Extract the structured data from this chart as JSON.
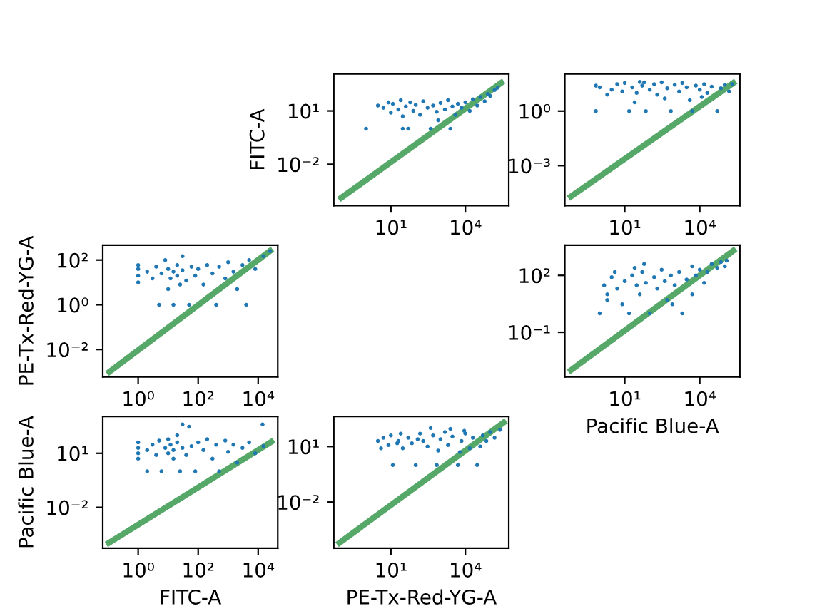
{
  "chart_data": [
    {
      "type": "scatter",
      "ylabel": "FITC-A",
      "xlim": [
        0.05,
        560000
      ],
      "ylim": [
        4.7e-05,
        1200
      ],
      "log": "xy",
      "grid": false,
      "xticks": [
        {
          "value": 10,
          "label": "10¹"
        },
        {
          "value": 10000,
          "label": "10⁴"
        }
      ],
      "yticks": [
        {
          "value": 10,
          "label": "10¹"
        },
        {
          "value": 0.01,
          "label": "10⁻²"
        }
      ],
      "series": [
        {
          "color": "#1f77b4",
          "x": [
            1,
            3,
            5,
            8,
            10,
            12,
            20,
            25,
            30,
            40,
            50,
            60,
            80,
            100,
            150,
            200,
            300,
            400,
            500,
            700,
            1000,
            1500,
            2000,
            3000,
            4000,
            5000,
            7000,
            10000,
            15000,
            20000,
            30000,
            40000,
            60000,
            80000,
            100000,
            150000,
            200000,
            30,
            2500,
            800
          ],
          "values": [
            1,
            20,
            15,
            30,
            8,
            25,
            12,
            40,
            5,
            18,
            1,
            30,
            10,
            22,
            6,
            35,
            15,
            1,
            20,
            9,
            28,
            12,
            40,
            18,
            6,
            25,
            15,
            30,
            10,
            45,
            20,
            60,
            35,
            90,
            70,
            150,
            200,
            1,
            1,
            3
          ]
        },
        {
          "type": "line",
          "color": "#55a868",
          "x": [
            0.1,
            280000
          ],
          "values": [
            0.00013,
            380
          ]
        }
      ]
    },
    {
      "type": "scatter",
      "xlim": [
        0.04,
        400000
      ],
      "ylim": [
        6.3e-06,
        110
      ],
      "log": "xy",
      "grid": false,
      "xticks": [
        {
          "value": 10,
          "label": "10¹"
        },
        {
          "value": 10000,
          "label": "10⁴"
        }
      ],
      "yticks": [
        {
          "value": 1,
          "label": "10⁰"
        },
        {
          "value": 0.001,
          "label": "10⁻³"
        }
      ],
      "series": [
        {
          "color": "#1f77b4",
          "x": [
            0.7,
            0.7,
            1,
            2,
            3,
            5,
            8,
            10,
            15,
            20,
            30,
            40,
            50,
            70,
            100,
            150,
            200,
            300,
            500,
            700,
            1000,
            1500,
            2000,
            3000,
            5000,
            7000,
            10000,
            15000,
            20000,
            30000,
            50000,
            70000,
            100000,
            150000,
            200000,
            25,
            400,
            4000,
            12000,
            60
          ],
          "values": [
            1,
            25,
            20,
            8,
            15,
            30,
            12,
            35,
            1,
            20,
            10,
            40,
            25,
            1,
            15,
            30,
            8,
            38,
            18,
            1,
            28,
            12,
            35,
            20,
            1,
            25,
            15,
            30,
            10,
            22,
            1,
            18,
            28,
            12,
            30,
            3,
            5,
            4,
            6,
            38
          ]
        },
        {
          "type": "line",
          "color": "#55a868",
          "x": [
            0.07,
            220000
          ],
          "values": [
            2e-05,
            35
          ]
        }
      ]
    },
    {
      "type": "scatter",
      "ylabel": "PE-Tx-Red-YG-A",
      "xlim": [
        0.066,
        45000
      ],
      "ylim": [
        0.00059,
        460
      ],
      "log": "xy",
      "grid": false,
      "xticks": [
        {
          "value": 1,
          "label": "10⁰"
        },
        {
          "value": 100,
          "label": "10²"
        },
        {
          "value": 10000,
          "label": "10⁴"
        }
      ],
      "yticks": [
        {
          "value": 100,
          "label": "10²"
        },
        {
          "value": 1,
          "label": "10⁰"
        },
        {
          "value": 0.01,
          "label": "10⁻²"
        }
      ],
      "series": [
        {
          "color": "#1f77b4",
          "x": [
            1,
            1,
            1,
            1,
            2,
            3,
            4,
            5,
            6,
            8,
            10,
            10,
            12,
            15,
            15,
            20,
            20,
            25,
            30,
            30,
            40,
            50,
            60,
            80,
            100,
            150,
            200,
            300,
            400,
            500,
            800,
            1000,
            1500,
            2000,
            3000,
            4000,
            5000,
            8000,
            15000,
            25000
          ],
          "values": [
            10,
            20,
            40,
            60,
            30,
            15,
            50,
            1,
            25,
            100,
            5,
            40,
            15,
            30,
            1,
            60,
            20,
            8,
            150,
            35,
            12,
            1,
            50,
            20,
            40,
            8,
            60,
            25,
            1,
            50,
            15,
            80,
            30,
            5,
            60,
            1,
            100,
            40,
            150,
            250
          ]
        },
        {
          "type": "line",
          "color": "#55a868",
          "x": [
            0.11,
            25000
          ],
          "values": [
            0.001,
            257
          ]
        }
      ]
    },
    {
      "type": "scatter",
      "xlabel": "Pacific Blue-A",
      "xlim": [
        0.04,
        400000
      ],
      "ylim": [
        0.00044,
        3900
      ],
      "log": "xy",
      "grid": false,
      "xticks": [
        {
          "value": 10,
          "label": "10¹"
        },
        {
          "value": 10000,
          "label": "10⁴"
        }
      ],
      "yticks": [
        {
          "value": 100,
          "label": "10²"
        },
        {
          "value": 0.1,
          "label": "10⁻¹"
        }
      ],
      "series": [
        {
          "color": "#1f77b4",
          "x": [
            1,
            1.5,
            2,
            3,
            5,
            8,
            10,
            15,
            20,
            30,
            40,
            50,
            70,
            100,
            150,
            200,
            300,
            400,
            500,
            700,
            1000,
            1500,
            2000,
            3000,
            5000,
            7000,
            10000,
            15000,
            20000,
            30000,
            50000,
            70000,
            100000,
            120000,
            60,
            25,
            800,
            5000,
            4,
            2
          ],
          "values": [
            1,
            30,
            10,
            80,
            20,
            3,
            50,
            1,
            100,
            30,
            10,
            150,
            40,
            1,
            80,
            20,
            200,
            50,
            5,
            100,
            30,
            150,
            1,
            60,
            300,
            100,
            200,
            40,
            150,
            400,
            250,
            500,
            300,
            600,
            400,
            250,
            3,
            10,
            150,
            5
          ]
        },
        {
          "type": "line",
          "color": "#55a868",
          "x": [
            0.07,
            220000
          ],
          "values": [
            0.001,
            2000
          ]
        }
      ]
    },
    {
      "type": "scatter",
      "xlabel": "FITC-A",
      "ylabel": "Pacific Blue-A",
      "xlim": [
        0.066,
        45000
      ],
      "ylim": [
        5.4e-05,
        1100
      ],
      "log": "xy",
      "grid": false,
      "xticks": [
        {
          "value": 1,
          "label": "10⁰"
        },
        {
          "value": 100,
          "label": "10²"
        },
        {
          "value": 10000,
          "label": "10⁴"
        }
      ],
      "yticks": [
        {
          "value": 10,
          "label": "10¹"
        },
        {
          "value": 0.01,
          "label": "10⁻²"
        }
      ],
      "series": [
        {
          "color": "#1f77b4",
          "x": [
            1,
            1,
            1,
            1,
            2,
            2,
            3,
            4,
            5,
            6,
            8,
            10,
            10,
            12,
            15,
            15,
            20,
            20,
            25,
            30,
            30,
            40,
            50,
            60,
            80,
            100,
            150,
            200,
            300,
            400,
            500,
            800,
            1000,
            1500,
            2000,
            3000,
            5000,
            8000,
            15000,
            14000
          ],
          "values": [
            5,
            10,
            20,
            40,
            1,
            15,
            30,
            8,
            50,
            1,
            20,
            10,
            60,
            30,
            5,
            15,
            100,
            40,
            1,
            20,
            400,
            8,
            300,
            25,
            1,
            40,
            15,
            60,
            5,
            30,
            1,
            50,
            12,
            30,
            3,
            20,
            40,
            10,
            25,
            400
          ]
        },
        {
          "type": "line",
          "color": "#55a868",
          "x": [
            0.105,
            27500
          ],
          "values": [
            0.000107,
            43
          ]
        }
      ]
    },
    {
      "type": "scatter",
      "xlabel": "PE-Tx-Red-YG-A",
      "xlim": [
        0.05,
        560000
      ],
      "ylim": [
        3.2e-05,
        420
      ],
      "log": "xy",
      "grid": false,
      "xticks": [
        {
          "value": 10,
          "label": "10¹"
        },
        {
          "value": 10000,
          "label": "10⁴"
        }
      ],
      "yticks": [
        {
          "value": 10,
          "label": "10¹"
        },
        {
          "value": 0.01,
          "label": "10⁻²"
        }
      ],
      "series": [
        {
          "color": "#1f77b4",
          "x": [
            3,
            4,
            5,
            8,
            10,
            12,
            20,
            30,
            50,
            70,
            100,
            150,
            200,
            300,
            500,
            700,
            1000,
            1500,
            2000,
            3000,
            5000,
            7000,
            10000,
            15000,
            20000,
            30000,
            50000,
            70000,
            100000,
            150000,
            250000,
            400,
            2500,
            25,
            6000,
            40000,
            800,
            120,
            18,
            9000
          ],
          "values": [
            20,
            8,
            30,
            12,
            40,
            1,
            20,
            8,
            30,
            15,
            1,
            50,
            20,
            10,
            40,
            1,
            25,
            60,
            12,
            35,
            1,
            20,
            50,
            8,
            30,
            1,
            40,
            20,
            60,
            30,
            80,
            100,
            90,
            50,
            5,
            10,
            6,
            25,
            15,
            70
          ]
        },
        {
          "type": "line",
          "color": "#55a868",
          "x": [
            0.085,
            350000
          ],
          "values": [
            6.3e-05,
            200
          ]
        }
      ]
    }
  ]
}
